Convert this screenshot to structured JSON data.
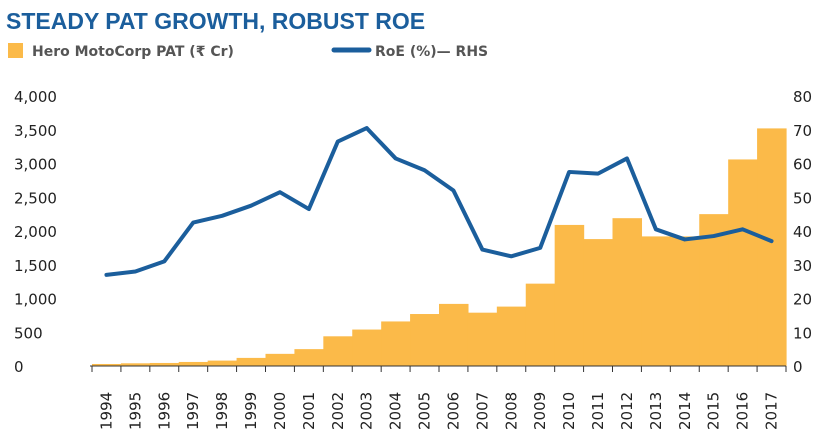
{
  "chart_data": {
    "type": "bar",
    "title": "STEADY PAT GROWTH, ROBUST ROE",
    "categories": [
      "1994",
      "1995",
      "1996",
      "1997",
      "1998",
      "1999",
      "2000",
      "2001",
      "2002",
      "2003",
      "2004",
      "2005",
      "2006",
      "2007",
      "2008",
      "2009",
      "2010",
      "2011",
      "2012",
      "2013",
      "2014",
      "2015",
      "2016",
      "2017"
    ],
    "series": [
      {
        "name": "Hero MotoCorp PAT (₹ Cr)",
        "type": "bar",
        "axis": "left",
        "color": "#FBBA49",
        "values": [
          30,
          40,
          45,
          60,
          80,
          120,
          180,
          250,
          440,
          540,
          660,
          770,
          920,
          790,
          880,
          1220,
          2090,
          1880,
          2190,
          1920,
          1920,
          2250,
          3060,
          3520
        ]
      },
      {
        "name": "RoE (%)— RHS",
        "type": "line",
        "axis": "right",
        "color": "#1B5E9C",
        "values": [
          27,
          28,
          31,
          42.5,
          44.5,
          47.5,
          51.5,
          46.5,
          66.5,
          70.5,
          61.5,
          58,
          52,
          34.5,
          32.5,
          35,
          57.5,
          57,
          61.5,
          40.5,
          37.5,
          38.5,
          40.5,
          37
        ]
      }
    ],
    "left_axis": {
      "min": 0,
      "max": 4000,
      "ticks": [
        "4,000",
        "3,500",
        "3,000",
        "2,500",
        "2,000",
        "1,500",
        "1,000",
        "500",
        "0"
      ]
    },
    "right_axis": {
      "min": 0,
      "max": 80,
      "ticks": [
        "80",
        "70",
        "60",
        "50",
        "40",
        "30",
        "20",
        "10",
        "0"
      ]
    },
    "legend": [
      {
        "label": "Hero MotoCorp PAT (₹ Cr)",
        "symbol": "square",
        "color": "#FBBA49"
      },
      {
        "label": "RoE (%)— RHS",
        "symbol": "line",
        "color": "#1B5E9C"
      }
    ],
    "legend_position": "top-left"
  }
}
